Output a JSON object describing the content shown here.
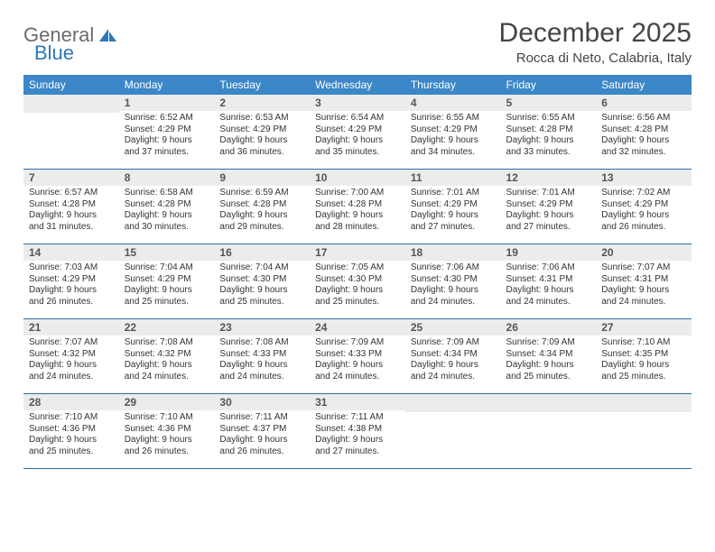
{
  "brand": {
    "word1": "General",
    "word2": "Blue"
  },
  "title": "December 2025",
  "location": "Rocca di Neto, Calabria, Italy",
  "colors": {
    "header_bg": "#3b87c8",
    "header_text": "#ffffff",
    "daynum_bg": "#ececec",
    "rule": "#2e6ea8",
    "brand_grey": "#6b6b6b",
    "brand_blue": "#2e77b8"
  },
  "calendar": {
    "type": "table",
    "columns": [
      "Sunday",
      "Monday",
      "Tuesday",
      "Wednesday",
      "Thursday",
      "Friday",
      "Saturday"
    ],
    "first_weekday_index": 1,
    "days": [
      {
        "n": 1,
        "sunrise": "6:52 AM",
        "sunset": "4:29 PM",
        "daylight": "9 hours and 37 minutes."
      },
      {
        "n": 2,
        "sunrise": "6:53 AM",
        "sunset": "4:29 PM",
        "daylight": "9 hours and 36 minutes."
      },
      {
        "n": 3,
        "sunrise": "6:54 AM",
        "sunset": "4:29 PM",
        "daylight": "9 hours and 35 minutes."
      },
      {
        "n": 4,
        "sunrise": "6:55 AM",
        "sunset": "4:29 PM",
        "daylight": "9 hours and 34 minutes."
      },
      {
        "n": 5,
        "sunrise": "6:55 AM",
        "sunset": "4:28 PM",
        "daylight": "9 hours and 33 minutes."
      },
      {
        "n": 6,
        "sunrise": "6:56 AM",
        "sunset": "4:28 PM",
        "daylight": "9 hours and 32 minutes."
      },
      {
        "n": 7,
        "sunrise": "6:57 AM",
        "sunset": "4:28 PM",
        "daylight": "9 hours and 31 minutes."
      },
      {
        "n": 8,
        "sunrise": "6:58 AM",
        "sunset": "4:28 PM",
        "daylight": "9 hours and 30 minutes."
      },
      {
        "n": 9,
        "sunrise": "6:59 AM",
        "sunset": "4:28 PM",
        "daylight": "9 hours and 29 minutes."
      },
      {
        "n": 10,
        "sunrise": "7:00 AM",
        "sunset": "4:28 PM",
        "daylight": "9 hours and 28 minutes."
      },
      {
        "n": 11,
        "sunrise": "7:01 AM",
        "sunset": "4:29 PM",
        "daylight": "9 hours and 27 minutes."
      },
      {
        "n": 12,
        "sunrise": "7:01 AM",
        "sunset": "4:29 PM",
        "daylight": "9 hours and 27 minutes."
      },
      {
        "n": 13,
        "sunrise": "7:02 AM",
        "sunset": "4:29 PM",
        "daylight": "9 hours and 26 minutes."
      },
      {
        "n": 14,
        "sunrise": "7:03 AM",
        "sunset": "4:29 PM",
        "daylight": "9 hours and 26 minutes."
      },
      {
        "n": 15,
        "sunrise": "7:04 AM",
        "sunset": "4:29 PM",
        "daylight": "9 hours and 25 minutes."
      },
      {
        "n": 16,
        "sunrise": "7:04 AM",
        "sunset": "4:30 PM",
        "daylight": "9 hours and 25 minutes."
      },
      {
        "n": 17,
        "sunrise": "7:05 AM",
        "sunset": "4:30 PM",
        "daylight": "9 hours and 25 minutes."
      },
      {
        "n": 18,
        "sunrise": "7:06 AM",
        "sunset": "4:30 PM",
        "daylight": "9 hours and 24 minutes."
      },
      {
        "n": 19,
        "sunrise": "7:06 AM",
        "sunset": "4:31 PM",
        "daylight": "9 hours and 24 minutes."
      },
      {
        "n": 20,
        "sunrise": "7:07 AM",
        "sunset": "4:31 PM",
        "daylight": "9 hours and 24 minutes."
      },
      {
        "n": 21,
        "sunrise": "7:07 AM",
        "sunset": "4:32 PM",
        "daylight": "9 hours and 24 minutes."
      },
      {
        "n": 22,
        "sunrise": "7:08 AM",
        "sunset": "4:32 PM",
        "daylight": "9 hours and 24 minutes."
      },
      {
        "n": 23,
        "sunrise": "7:08 AM",
        "sunset": "4:33 PM",
        "daylight": "9 hours and 24 minutes."
      },
      {
        "n": 24,
        "sunrise": "7:09 AM",
        "sunset": "4:33 PM",
        "daylight": "9 hours and 24 minutes."
      },
      {
        "n": 25,
        "sunrise": "7:09 AM",
        "sunset": "4:34 PM",
        "daylight": "9 hours and 24 minutes."
      },
      {
        "n": 26,
        "sunrise": "7:09 AM",
        "sunset": "4:34 PM",
        "daylight": "9 hours and 25 minutes."
      },
      {
        "n": 27,
        "sunrise": "7:10 AM",
        "sunset": "4:35 PM",
        "daylight": "9 hours and 25 minutes."
      },
      {
        "n": 28,
        "sunrise": "7:10 AM",
        "sunset": "4:36 PM",
        "daylight": "9 hours and 25 minutes."
      },
      {
        "n": 29,
        "sunrise": "7:10 AM",
        "sunset": "4:36 PM",
        "daylight": "9 hours and 26 minutes."
      },
      {
        "n": 30,
        "sunrise": "7:11 AM",
        "sunset": "4:37 PM",
        "daylight": "9 hours and 26 minutes."
      },
      {
        "n": 31,
        "sunrise": "7:11 AM",
        "sunset": "4:38 PM",
        "daylight": "9 hours and 27 minutes."
      }
    ],
    "labels": {
      "sunrise": "Sunrise:",
      "sunset": "Sunset:",
      "daylight": "Daylight:"
    }
  }
}
